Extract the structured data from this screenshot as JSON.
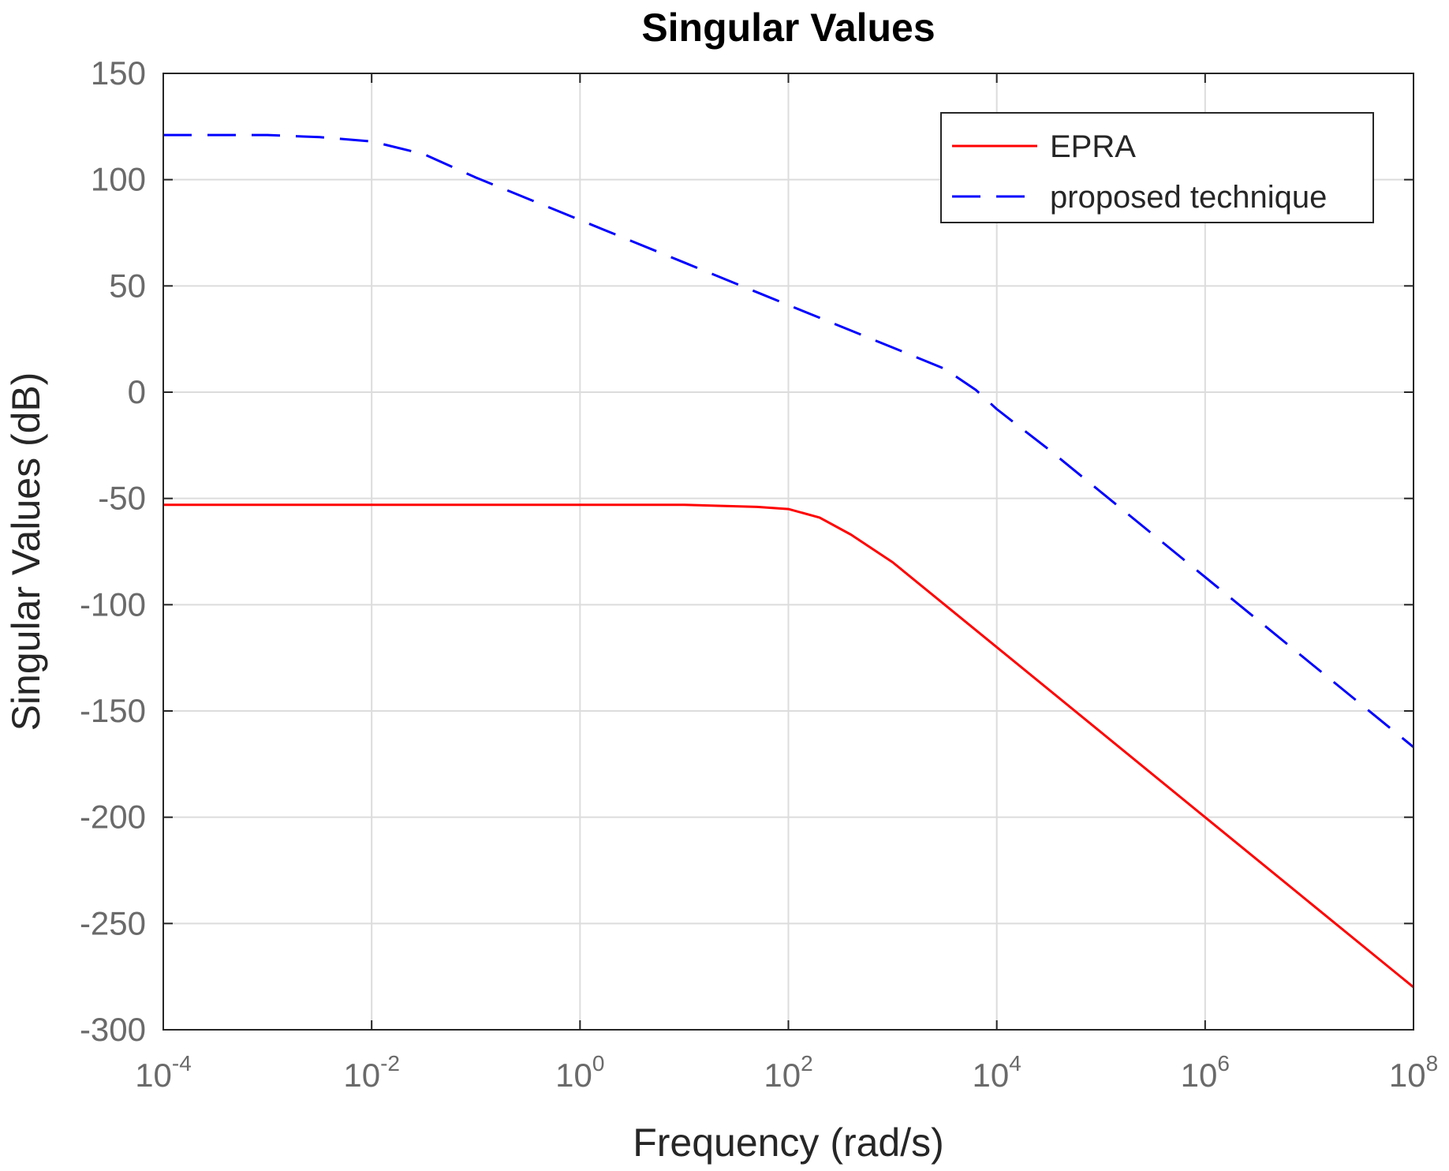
{
  "chart_data": {
    "type": "line",
    "title": "Singular Values",
    "xlabel": "Frequency (rad/s)",
    "ylabel": "Singular Values (dB)",
    "xscale": "log",
    "xlim": [
      0.0001,
      100000000
    ],
    "ylim": [
      -300,
      150
    ],
    "grid": true,
    "legend_position": "top-right",
    "xtick_base": "10",
    "xtick_exponents": [
      "-4",
      "-2",
      "0",
      "2",
      "4",
      "6",
      "8"
    ],
    "ytick_labels": [
      "150",
      "100",
      "50",
      "0",
      "-50",
      "-100",
      "-150",
      "-200",
      "-250",
      "-300"
    ],
    "ytick_values": [
      150,
      100,
      50,
      0,
      -50,
      -100,
      -150,
      -200,
      -250,
      -300
    ],
    "series": [
      {
        "name": "EPRA",
        "color": "#ff0000",
        "style": "solid",
        "log10_x": [
          -4,
          -2,
          0,
          1,
          1.7,
          2,
          2.3,
          2.6,
          3,
          3.5,
          4,
          5,
          6,
          7,
          8
        ],
        "y": [
          -53,
          -53,
          -53,
          -53,
          -54,
          -55,
          -59,
          -67,
          -80,
          -100,
          -120,
          -160,
          -200,
          -240,
          -280
        ]
      },
      {
        "name": "proposed technique",
        "color": "#0000ff",
        "style": "dashed",
        "log10_x": [
          -4,
          -3,
          -2.5,
          -2,
          -1.5,
          -1,
          0,
          1,
          2,
          2.5,
          3,
          3.5,
          3.8,
          4,
          4.5,
          5,
          6,
          7,
          8
        ],
        "y": [
          121,
          121,
          120,
          118,
          112,
          101,
          81,
          61,
          41,
          31,
          21,
          11,
          1,
          -8,
          -27,
          -47,
          -87,
          -127,
          -167
        ]
      }
    ]
  }
}
